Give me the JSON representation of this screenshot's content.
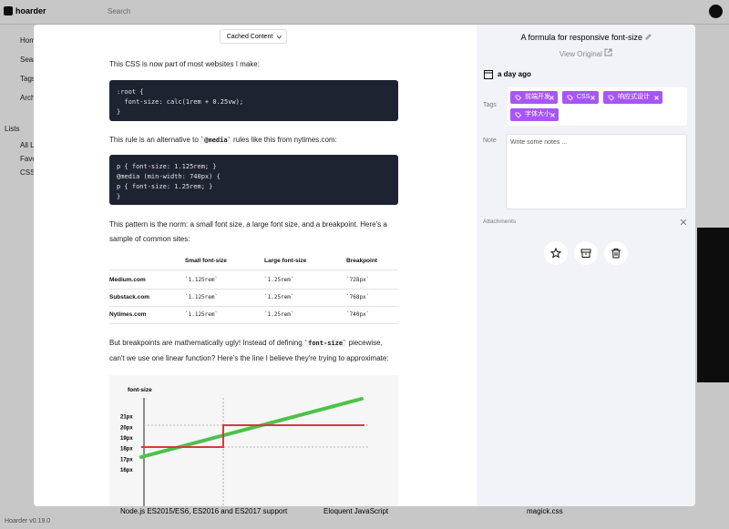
{
  "app": {
    "brand": "hoarder",
    "search": "Search",
    "nav": [
      "Home",
      "Search",
      "Tags",
      "Archive"
    ],
    "lists_heading": "Lists",
    "lists": [
      "All Lists",
      "Favourites",
      "CSS"
    ],
    "version": "Hoarder v0.19.0",
    "cards": [
      "Node.js ES2015/ES6, ES2016 and ES2017 support",
      "Eloquent JavaScript",
      "magick.css"
    ]
  },
  "modal": {
    "view_toggle": "Cached Content",
    "article": {
      "intro": "This CSS is now part of most websites I make:",
      "code1": [
        ":root {",
        "  font-size: calc(1rem + 0.25vw);",
        "}"
      ],
      "para2": [
        "This rule is an alternative to ",
        "`@media`",
        " rules like this from nytimes.com:"
      ],
      "code2": [
        "p { font-size: 1.125rem; }",
        "@media (min-width: 740px) {",
        "p { font-size: 1.25rem; }",
        "}"
      ],
      "para3": "This pattern is the norm: a small font size, a large font size, and a breakpoint. Here's a sample of common sites:",
      "table": {
        "columns": [
          "Small font-size",
          "Large font-size",
          "Breakpoint"
        ],
        "rows": [
          [
            "Medium.com",
            "`1.125rem`",
            "`1.25rem`",
            "`728px`"
          ],
          [
            "Substack.com",
            "`1.125rem`",
            "`1.25rem`",
            "`768px`"
          ],
          [
            "Nytimes.com",
            "`1.125rem`",
            "`1.25rem`",
            "`740px`"
          ]
        ]
      },
      "para4": [
        "But breakpoints are mathematically ugly! Instead of defining ",
        "`font-size`",
        " piecewise, can't we use one linear function? Here's the line I believe they're trying to approximate:"
      ],
      "figure": {
        "y_label": "font-size",
        "ticks": [
          "21px",
          "20px",
          "19px",
          "18px",
          "17px",
          "16px"
        ]
      }
    },
    "details": {
      "title": "A formula for responsive font-size",
      "link": "View Original",
      "time": "a day ago",
      "tags_label": "Tags",
      "tags": [
        "前端开发",
        "CSS",
        "响应式设计",
        "字体大小"
      ],
      "note_label": "Note",
      "note_placeholder": "Write some notes ...",
      "attachments_label": "Attachments"
    }
  }
}
